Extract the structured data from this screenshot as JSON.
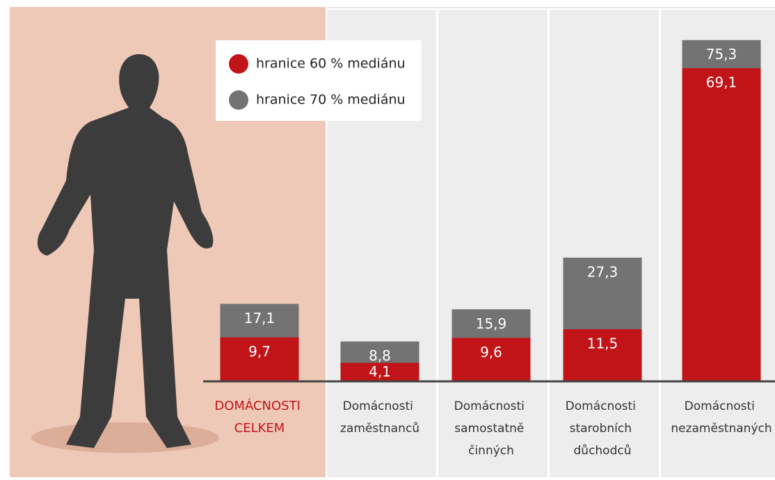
{
  "chart_data": {
    "type": "bar",
    "categories": [
      "DOMÁCNOSTI CELKEM",
      "Domácnosti zaměstnanců",
      "Domácnosti samostatně činných",
      "Domácnosti starobních důchodců",
      "Domácnosti nezaměstnaných"
    ],
    "series": [
      {
        "name": "hranice 70 % mediánu",
        "color": "#737373",
        "values": [
          17.1,
          8.8,
          15.9,
          27.3,
          75.3
        ],
        "value_labels": [
          "17,1",
          "8,8",
          "15,9",
          "27,3",
          "75,3"
        ]
      },
      {
        "name": "hranice 60 % mediánu",
        "color": "#c01418",
        "values": [
          9.7,
          4.1,
          9.6,
          11.5,
          69.1
        ],
        "value_labels": [
          "9,7",
          "4,1",
          "9,6",
          "11,5",
          "69,1"
        ]
      }
    ],
    "ylim": [
      0,
      82
    ]
  }
}
